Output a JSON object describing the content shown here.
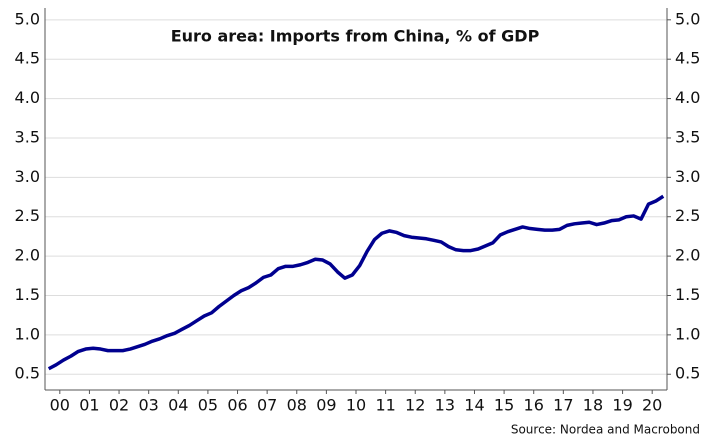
{
  "chart_data": {
    "type": "line",
    "title": "Euro area: Imports from China, % of GDP",
    "source": "Source: Nordea and Macrobond",
    "x": [
      2000.125,
      2000.375,
      2000.625,
      2000.875,
      2001.125,
      2001.375,
      2001.625,
      2001.875,
      2002.125,
      2002.375,
      2002.625,
      2002.875,
      2003.125,
      2003.375,
      2003.625,
      2003.875,
      2004.125,
      2004.375,
      2004.625,
      2004.875,
      2005.125,
      2005.375,
      2005.625,
      2005.875,
      2006.125,
      2006.375,
      2006.625,
      2006.875,
      2007.125,
      2007.375,
      2007.625,
      2007.875,
      2008.125,
      2008.375,
      2008.625,
      2008.875,
      2009.125,
      2009.375,
      2009.625,
      2009.875,
      2010.125,
      2010.375,
      2010.625,
      2010.875,
      2011.125,
      2011.375,
      2011.625,
      2011.875,
      2012.125,
      2012.375,
      2012.625,
      2012.875,
      2013.125,
      2013.375,
      2013.625,
      2013.875,
      2014.125,
      2014.375,
      2014.625,
      2014.875,
      2015.125,
      2015.375,
      2015.625,
      2015.875,
      2016.125,
      2016.375,
      2016.625,
      2016.875,
      2017.125,
      2017.375,
      2017.625,
      2017.875,
      2018.125,
      2018.375,
      2018.625,
      2018.875,
      2019.125,
      2019.375,
      2019.625,
      2019.875,
      2020.125,
      2020.375,
      2020.625,
      2020.875
    ],
    "series": [
      {
        "name": "Imports from China",
        "color": "#00008f",
        "values": [
          0.57,
          0.62,
          0.68,
          0.73,
          0.79,
          0.82,
          0.83,
          0.82,
          0.8,
          0.8,
          0.8,
          0.82,
          0.85,
          0.88,
          0.92,
          0.95,
          0.99,
          1.02,
          1.07,
          1.12,
          1.18,
          1.24,
          1.28,
          1.36,
          1.43,
          1.5,
          1.56,
          1.6,
          1.66,
          1.73,
          1.76,
          1.84,
          1.87,
          1.87,
          1.89,
          1.92,
          1.96,
          1.95,
          1.9,
          1.8,
          1.72,
          1.76,
          1.88,
          2.06,
          2.21,
          2.29,
          2.32,
          2.3,
          2.26,
          2.24,
          2.23,
          2.22,
          2.2,
          2.18,
          2.12,
          2.08,
          2.07,
          2.07,
          2.09,
          2.13,
          2.17,
          2.27,
          2.31,
          2.34,
          2.37,
          2.35,
          2.34,
          2.33,
          2.33,
          2.34,
          2.39,
          2.41,
          2.42,
          2.43,
          2.4,
          2.42,
          2.45,
          2.46,
          2.5,
          2.51,
          2.47,
          2.66,
          2.7,
          2.76
        ]
      }
    ],
    "xlim": [
      2000,
      2021
    ],
    "xticks": [
      {
        "value": 2000.5,
        "label": "00"
      },
      {
        "value": 2001.5,
        "label": "01"
      },
      {
        "value": 2002.5,
        "label": "02"
      },
      {
        "value": 2003.5,
        "label": "03"
      },
      {
        "value": 2004.5,
        "label": "04"
      },
      {
        "value": 2005.5,
        "label": "05"
      },
      {
        "value": 2006.5,
        "label": "06"
      },
      {
        "value": 2007.5,
        "label": "07"
      },
      {
        "value": 2008.5,
        "label": "08"
      },
      {
        "value": 2009.5,
        "label": "09"
      },
      {
        "value": 2010.5,
        "label": "10"
      },
      {
        "value": 2011.5,
        "label": "11"
      },
      {
        "value": 2012.5,
        "label": "12"
      },
      {
        "value": 2013.5,
        "label": "13"
      },
      {
        "value": 2014.5,
        "label": "14"
      },
      {
        "value": 2015.5,
        "label": "15"
      },
      {
        "value": 2016.5,
        "label": "16"
      },
      {
        "value": 2017.5,
        "label": "17"
      },
      {
        "value": 2018.5,
        "label": "18"
      },
      {
        "value": 2019.5,
        "label": "19"
      },
      {
        "value": 2020.5,
        "label": "20"
      }
    ],
    "ylim": [
      0.3,
      5.15
    ],
    "yticks": [
      0.5,
      {
        "value": 1,
        "label": "1.0"
      },
      1.5,
      {
        "value": 2,
        "label": "2.0"
      },
      2.5,
      {
        "value": 3,
        "label": "3.0"
      },
      3.5,
      {
        "value": 4,
        "label": "4.0"
      },
      4.5,
      {
        "value": 5,
        "label": "5.0"
      }
    ],
    "y2lim": [
      0.3,
      5.15
    ],
    "y2ticks": [
      0.5,
      {
        "value": 1,
        "label": "1.0"
      },
      1.5,
      {
        "value": 2,
        "label": "2.0"
      },
      2.5,
      {
        "value": 3,
        "label": "3.0"
      },
      3.5,
      {
        "value": 4,
        "label": "4.0"
      },
      4.5,
      {
        "value": 5,
        "label": "5.0"
      }
    ],
    "grid": true
  }
}
